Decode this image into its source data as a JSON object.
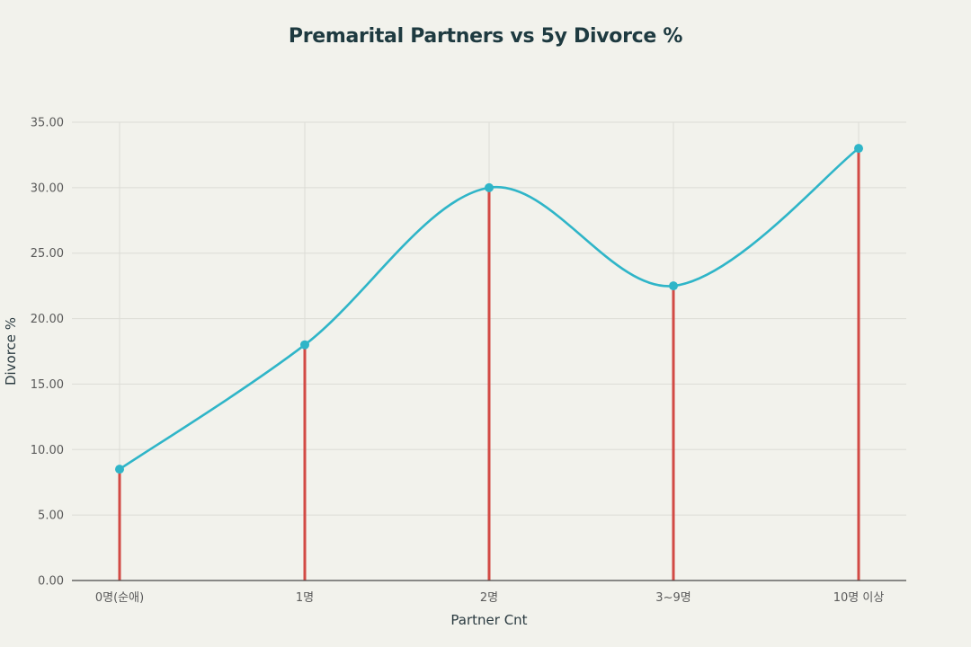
{
  "chart_data": {
    "type": "line",
    "title": "Premarital Partners vs 5y Divorce %",
    "xlabel": "Partner Cnt",
    "ylabel": "Divorce %",
    "categories": [
      "0명(순애)",
      "1명",
      "2명",
      "3~9명",
      "10명 이상"
    ],
    "series": [
      {
        "values": [
          8.5,
          18.0,
          30.0,
          22.5,
          33.0
        ]
      }
    ],
    "ylim": [
      0,
      35
    ],
    "yticks": [
      "0.00",
      "5.00",
      "10.00",
      "15.00",
      "20.00",
      "25.00",
      "30.00",
      "35.00"
    ],
    "grid": true,
    "line_color": "#2fb5c8",
    "stem_color": "#d24a45",
    "grid_color": "#dcdcd6",
    "axis_color": "#4a4a4a"
  }
}
